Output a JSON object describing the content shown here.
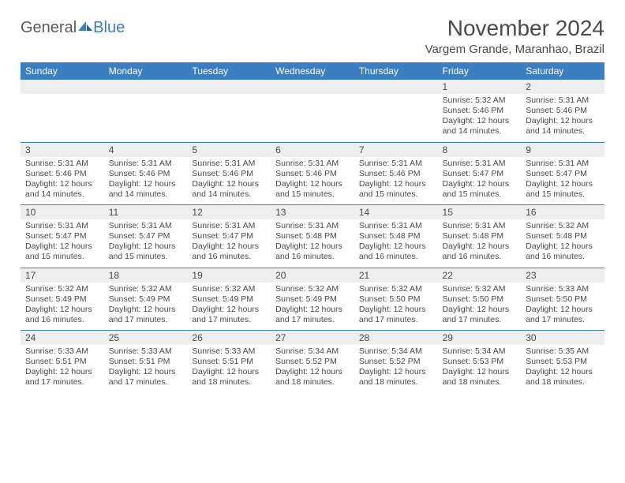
{
  "brand": {
    "text1": "General",
    "text2": "Blue"
  },
  "title": "November 2024",
  "location": "Vargem Grande, Maranhao, Brazil",
  "colors": {
    "header_bg": "#3a7fc2",
    "header_fg": "#ffffff",
    "daynum_bg": "#eeeeee",
    "text": "#4a4a4a",
    "rule": "#3a7fc2"
  },
  "weekdays": [
    "Sunday",
    "Monday",
    "Tuesday",
    "Wednesday",
    "Thursday",
    "Friday",
    "Saturday"
  ],
  "weeks": [
    [
      {
        "n": "",
        "sunrise": "",
        "sunset": "",
        "daylight": ""
      },
      {
        "n": "",
        "sunrise": "",
        "sunset": "",
        "daylight": ""
      },
      {
        "n": "",
        "sunrise": "",
        "sunset": "",
        "daylight": ""
      },
      {
        "n": "",
        "sunrise": "",
        "sunset": "",
        "daylight": ""
      },
      {
        "n": "",
        "sunrise": "",
        "sunset": "",
        "daylight": ""
      },
      {
        "n": "1",
        "sunrise": "5:32 AM",
        "sunset": "5:46 PM",
        "daylight": "12 hours and 14 minutes."
      },
      {
        "n": "2",
        "sunrise": "5:31 AM",
        "sunset": "5:46 PM",
        "daylight": "12 hours and 14 minutes."
      }
    ],
    [
      {
        "n": "3",
        "sunrise": "5:31 AM",
        "sunset": "5:46 PM",
        "daylight": "12 hours and 14 minutes."
      },
      {
        "n": "4",
        "sunrise": "5:31 AM",
        "sunset": "5:46 PM",
        "daylight": "12 hours and 14 minutes."
      },
      {
        "n": "5",
        "sunrise": "5:31 AM",
        "sunset": "5:46 PM",
        "daylight": "12 hours and 14 minutes."
      },
      {
        "n": "6",
        "sunrise": "5:31 AM",
        "sunset": "5:46 PM",
        "daylight": "12 hours and 15 minutes."
      },
      {
        "n": "7",
        "sunrise": "5:31 AM",
        "sunset": "5:46 PM",
        "daylight": "12 hours and 15 minutes."
      },
      {
        "n": "8",
        "sunrise": "5:31 AM",
        "sunset": "5:47 PM",
        "daylight": "12 hours and 15 minutes."
      },
      {
        "n": "9",
        "sunrise": "5:31 AM",
        "sunset": "5:47 PM",
        "daylight": "12 hours and 15 minutes."
      }
    ],
    [
      {
        "n": "10",
        "sunrise": "5:31 AM",
        "sunset": "5:47 PM",
        "daylight": "12 hours and 15 minutes."
      },
      {
        "n": "11",
        "sunrise": "5:31 AM",
        "sunset": "5:47 PM",
        "daylight": "12 hours and 15 minutes."
      },
      {
        "n": "12",
        "sunrise": "5:31 AM",
        "sunset": "5:47 PM",
        "daylight": "12 hours and 16 minutes."
      },
      {
        "n": "13",
        "sunrise": "5:31 AM",
        "sunset": "5:48 PM",
        "daylight": "12 hours and 16 minutes."
      },
      {
        "n": "14",
        "sunrise": "5:31 AM",
        "sunset": "5:48 PM",
        "daylight": "12 hours and 16 minutes."
      },
      {
        "n": "15",
        "sunrise": "5:31 AM",
        "sunset": "5:48 PM",
        "daylight": "12 hours and 16 minutes."
      },
      {
        "n": "16",
        "sunrise": "5:32 AM",
        "sunset": "5:48 PM",
        "daylight": "12 hours and 16 minutes."
      }
    ],
    [
      {
        "n": "17",
        "sunrise": "5:32 AM",
        "sunset": "5:49 PM",
        "daylight": "12 hours and 16 minutes."
      },
      {
        "n": "18",
        "sunrise": "5:32 AM",
        "sunset": "5:49 PM",
        "daylight": "12 hours and 17 minutes."
      },
      {
        "n": "19",
        "sunrise": "5:32 AM",
        "sunset": "5:49 PM",
        "daylight": "12 hours and 17 minutes."
      },
      {
        "n": "20",
        "sunrise": "5:32 AM",
        "sunset": "5:49 PM",
        "daylight": "12 hours and 17 minutes."
      },
      {
        "n": "21",
        "sunrise": "5:32 AM",
        "sunset": "5:50 PM",
        "daylight": "12 hours and 17 minutes."
      },
      {
        "n": "22",
        "sunrise": "5:32 AM",
        "sunset": "5:50 PM",
        "daylight": "12 hours and 17 minutes."
      },
      {
        "n": "23",
        "sunrise": "5:33 AM",
        "sunset": "5:50 PM",
        "daylight": "12 hours and 17 minutes."
      }
    ],
    [
      {
        "n": "24",
        "sunrise": "5:33 AM",
        "sunset": "5:51 PM",
        "daylight": "12 hours and 17 minutes."
      },
      {
        "n": "25",
        "sunrise": "5:33 AM",
        "sunset": "5:51 PM",
        "daylight": "12 hours and 17 minutes."
      },
      {
        "n": "26",
        "sunrise": "5:33 AM",
        "sunset": "5:51 PM",
        "daylight": "12 hours and 18 minutes."
      },
      {
        "n": "27",
        "sunrise": "5:34 AM",
        "sunset": "5:52 PM",
        "daylight": "12 hours and 18 minutes."
      },
      {
        "n": "28",
        "sunrise": "5:34 AM",
        "sunset": "5:52 PM",
        "daylight": "12 hours and 18 minutes."
      },
      {
        "n": "29",
        "sunrise": "5:34 AM",
        "sunset": "5:53 PM",
        "daylight": "12 hours and 18 minutes."
      },
      {
        "n": "30",
        "sunrise": "5:35 AM",
        "sunset": "5:53 PM",
        "daylight": "12 hours and 18 minutes."
      }
    ]
  ],
  "labels": {
    "sunrise": "Sunrise: ",
    "sunset": "Sunset: ",
    "daylight": "Daylight: "
  }
}
